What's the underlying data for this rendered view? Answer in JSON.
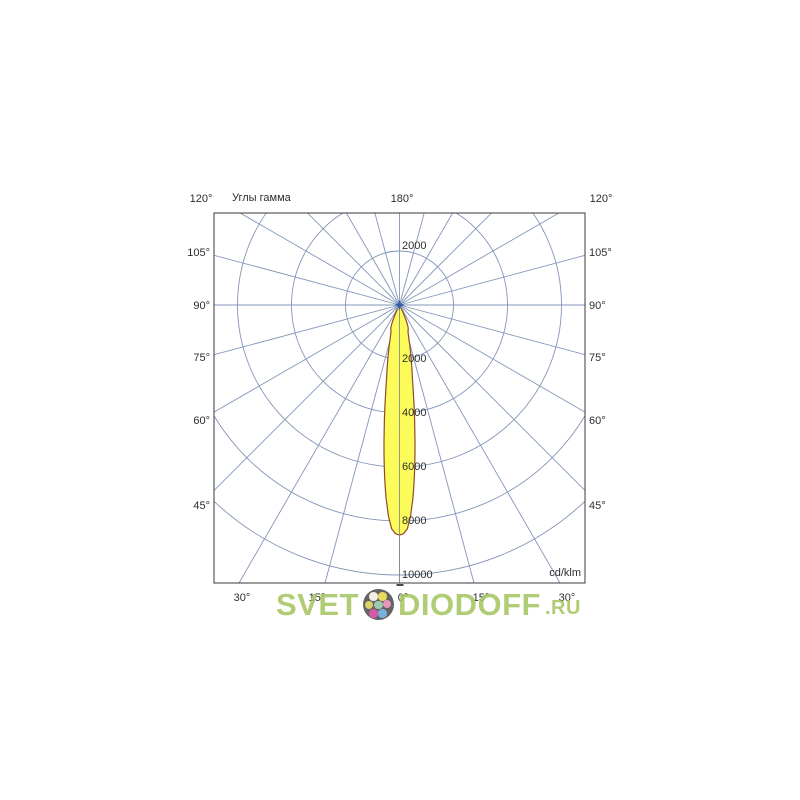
{
  "chart_data": {
    "type": "polar_photometric",
    "title": "Углы гамма",
    "unit_label": "cd/klm",
    "angular_step_deg": 15,
    "radial_rings": [
      2000,
      4000,
      6000,
      8000,
      10000
    ],
    "radial_tick_labels_below": [
      "2000",
      "4000",
      "6000",
      "8000",
      "10000"
    ],
    "radial_tick_labels_above": [
      "2000"
    ],
    "angle_labels_top": [
      "120°",
      "180°",
      "120°"
    ],
    "angle_labels_left": [
      "105°",
      "90°",
      "75°",
      "60°",
      "45°"
    ],
    "angle_labels_right": [
      "105°",
      "90°",
      "75°",
      "60°",
      "45°"
    ],
    "angle_labels_bottom": [
      "30°",
      "15°",
      "0°",
      "15°",
      "30°"
    ],
    "series": [
      {
        "name": "luminous-intensity-distribution",
        "unit": "cd/klm",
        "peak_value": 8520,
        "profile_gamma_deg": [
          0,
          1,
          2,
          3,
          4,
          5,
          6,
          7,
          8,
          9,
          10,
          11,
          12,
          13,
          14,
          15,
          16,
          17,
          18,
          19,
          20,
          21,
          22,
          24,
          26,
          28
        ],
        "profile_values": [
          8520,
          8470,
          8300,
          7820,
          7150,
          6350,
          5500,
          4650,
          3900,
          3270,
          2760,
          2400,
          2100,
          1840,
          1600,
          1390,
          1220,
          1100,
          1030,
          980,
          940,
          890,
          780,
          520,
          240,
          0
        ],
        "fill": "#FBFB59",
        "stroke": "#91492B"
      }
    ],
    "colors": {
      "grid": "#8295B8",
      "frame": "#4A4A4A",
      "text": "#2E2E2E",
      "axis_over_beam": "#8A8A8A",
      "center_marker": "#3A5BA8",
      "center_marker_halo": "#9DB6DC"
    }
  },
  "watermark": {
    "text_left": "SVET",
    "text_right": "DIODOFF",
    "text_suffix": ".RU",
    "color": "#A6C763",
    "logo_background": "#4F4F4F",
    "logo_dot_colors": [
      "#F2EFDD",
      "#E8D44A",
      "#D9CC50",
      "#8FC4A4",
      "#E488B8",
      "#CE44A0",
      "#66A8D8"
    ]
  }
}
